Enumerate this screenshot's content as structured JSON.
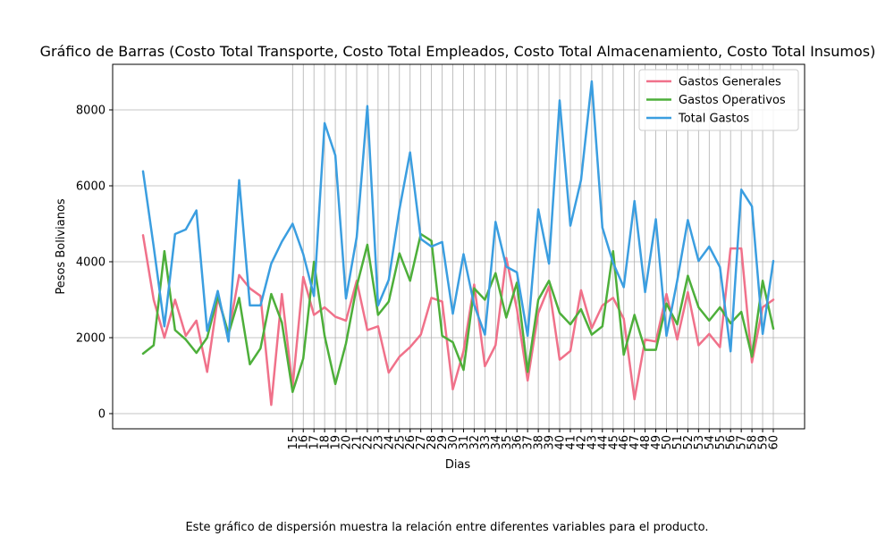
{
  "chart_data": {
    "type": "line",
    "title": "Gráfico de Barras (Costo Total Transporte, Costo Total Empleados, Costo Total Almacenamiento, Costo Total Insumos)",
    "xlabel": "Dias",
    "ylabel": "Pesos Bolivianos",
    "ylim": [
      -400,
      9200
    ],
    "yticks": [
      0,
      2000,
      4000,
      6000,
      8000
    ],
    "xticks": [
      15,
      16,
      17,
      18,
      19,
      20,
      21,
      22,
      23,
      24,
      25,
      26,
      27,
      28,
      29,
      30,
      31,
      32,
      33,
      34,
      35,
      36,
      37,
      38,
      39,
      40,
      41,
      42,
      43,
      44,
      45,
      46,
      47,
      48,
      49,
      50,
      51,
      52,
      53,
      54,
      55,
      56,
      57,
      58,
      59,
      60
    ],
    "grid": true,
    "legend_position": "top-right",
    "series": [
      {
        "name": "Gastos Generales",
        "color": "#f0718a",
        "values": [
          4700,
          3000,
          2000,
          3000,
          2050,
          2450,
          1100,
          3050,
          2100,
          3650,
          3300,
          3100,
          230,
          3150,
          700,
          3600,
          2600,
          2800,
          2550,
          2450,
          3500,
          2200,
          2300,
          1080,
          1500,
          1750,
          2080,
          3050,
          2950,
          640,
          1650,
          3400,
          1250,
          1800,
          4100,
          2750,
          870,
          2650,
          3350,
          1420,
          1650,
          3250,
          2250,
          2850,
          3050,
          2500,
          380,
          1950,
          1900,
          3150,
          1950,
          3200,
          1800,
          2100,
          1750,
          4350,
          4350,
          1350,
          2800,
          3000
        ]
      },
      {
        "name": "Gastos Operativos",
        "color": "#4daf3a",
        "values": [
          1580,
          1800,
          4280,
          2200,
          1950,
          1600,
          2000,
          3100,
          2100,
          3050,
          1300,
          1720,
          3150,
          2400,
          570,
          1450,
          4000,
          2050,
          780,
          1850,
          3350,
          4450,
          2600,
          2950,
          4220,
          3500,
          4730,
          4550,
          2050,
          1880,
          1150,
          3300,
          3000,
          3700,
          2530,
          3450,
          1100,
          3000,
          3500,
          2650,
          2350,
          2750,
          2080,
          2300,
          4280,
          1550,
          2600,
          1680,
          1680,
          2900,
          2350,
          3630,
          2800,
          2450,
          2800,
          2380,
          2680,
          1500,
          3500,
          2240
        ]
      },
      {
        "name": "Total Gastos",
        "color": "#3b9ee0",
        "values": [
          6380,
          4400,
          2300,
          4730,
          4850,
          5350,
          2180,
          3230,
          1900,
          6150,
          2850,
          2850,
          3950,
          4530,
          5000,
          4200,
          3100,
          7650,
          6800,
          3030,
          4650,
          8100,
          2850,
          3520,
          5380,
          6880,
          4600,
          4400,
          4520,
          2630,
          4200,
          2860,
          2080,
          5050,
          3870,
          3720,
          2050,
          5380,
          3950,
          8250,
          4950,
          6150,
          8750,
          4900,
          3970,
          3330,
          5600,
          3200,
          5120,
          2050,
          3500,
          5100,
          4020,
          4400,
          3860,
          1640,
          5900,
          5460,
          2100,
          4020
        ]
      }
    ]
  },
  "caption": "Este gráfico de dispersión muestra la relación entre diferentes variables para el producto."
}
